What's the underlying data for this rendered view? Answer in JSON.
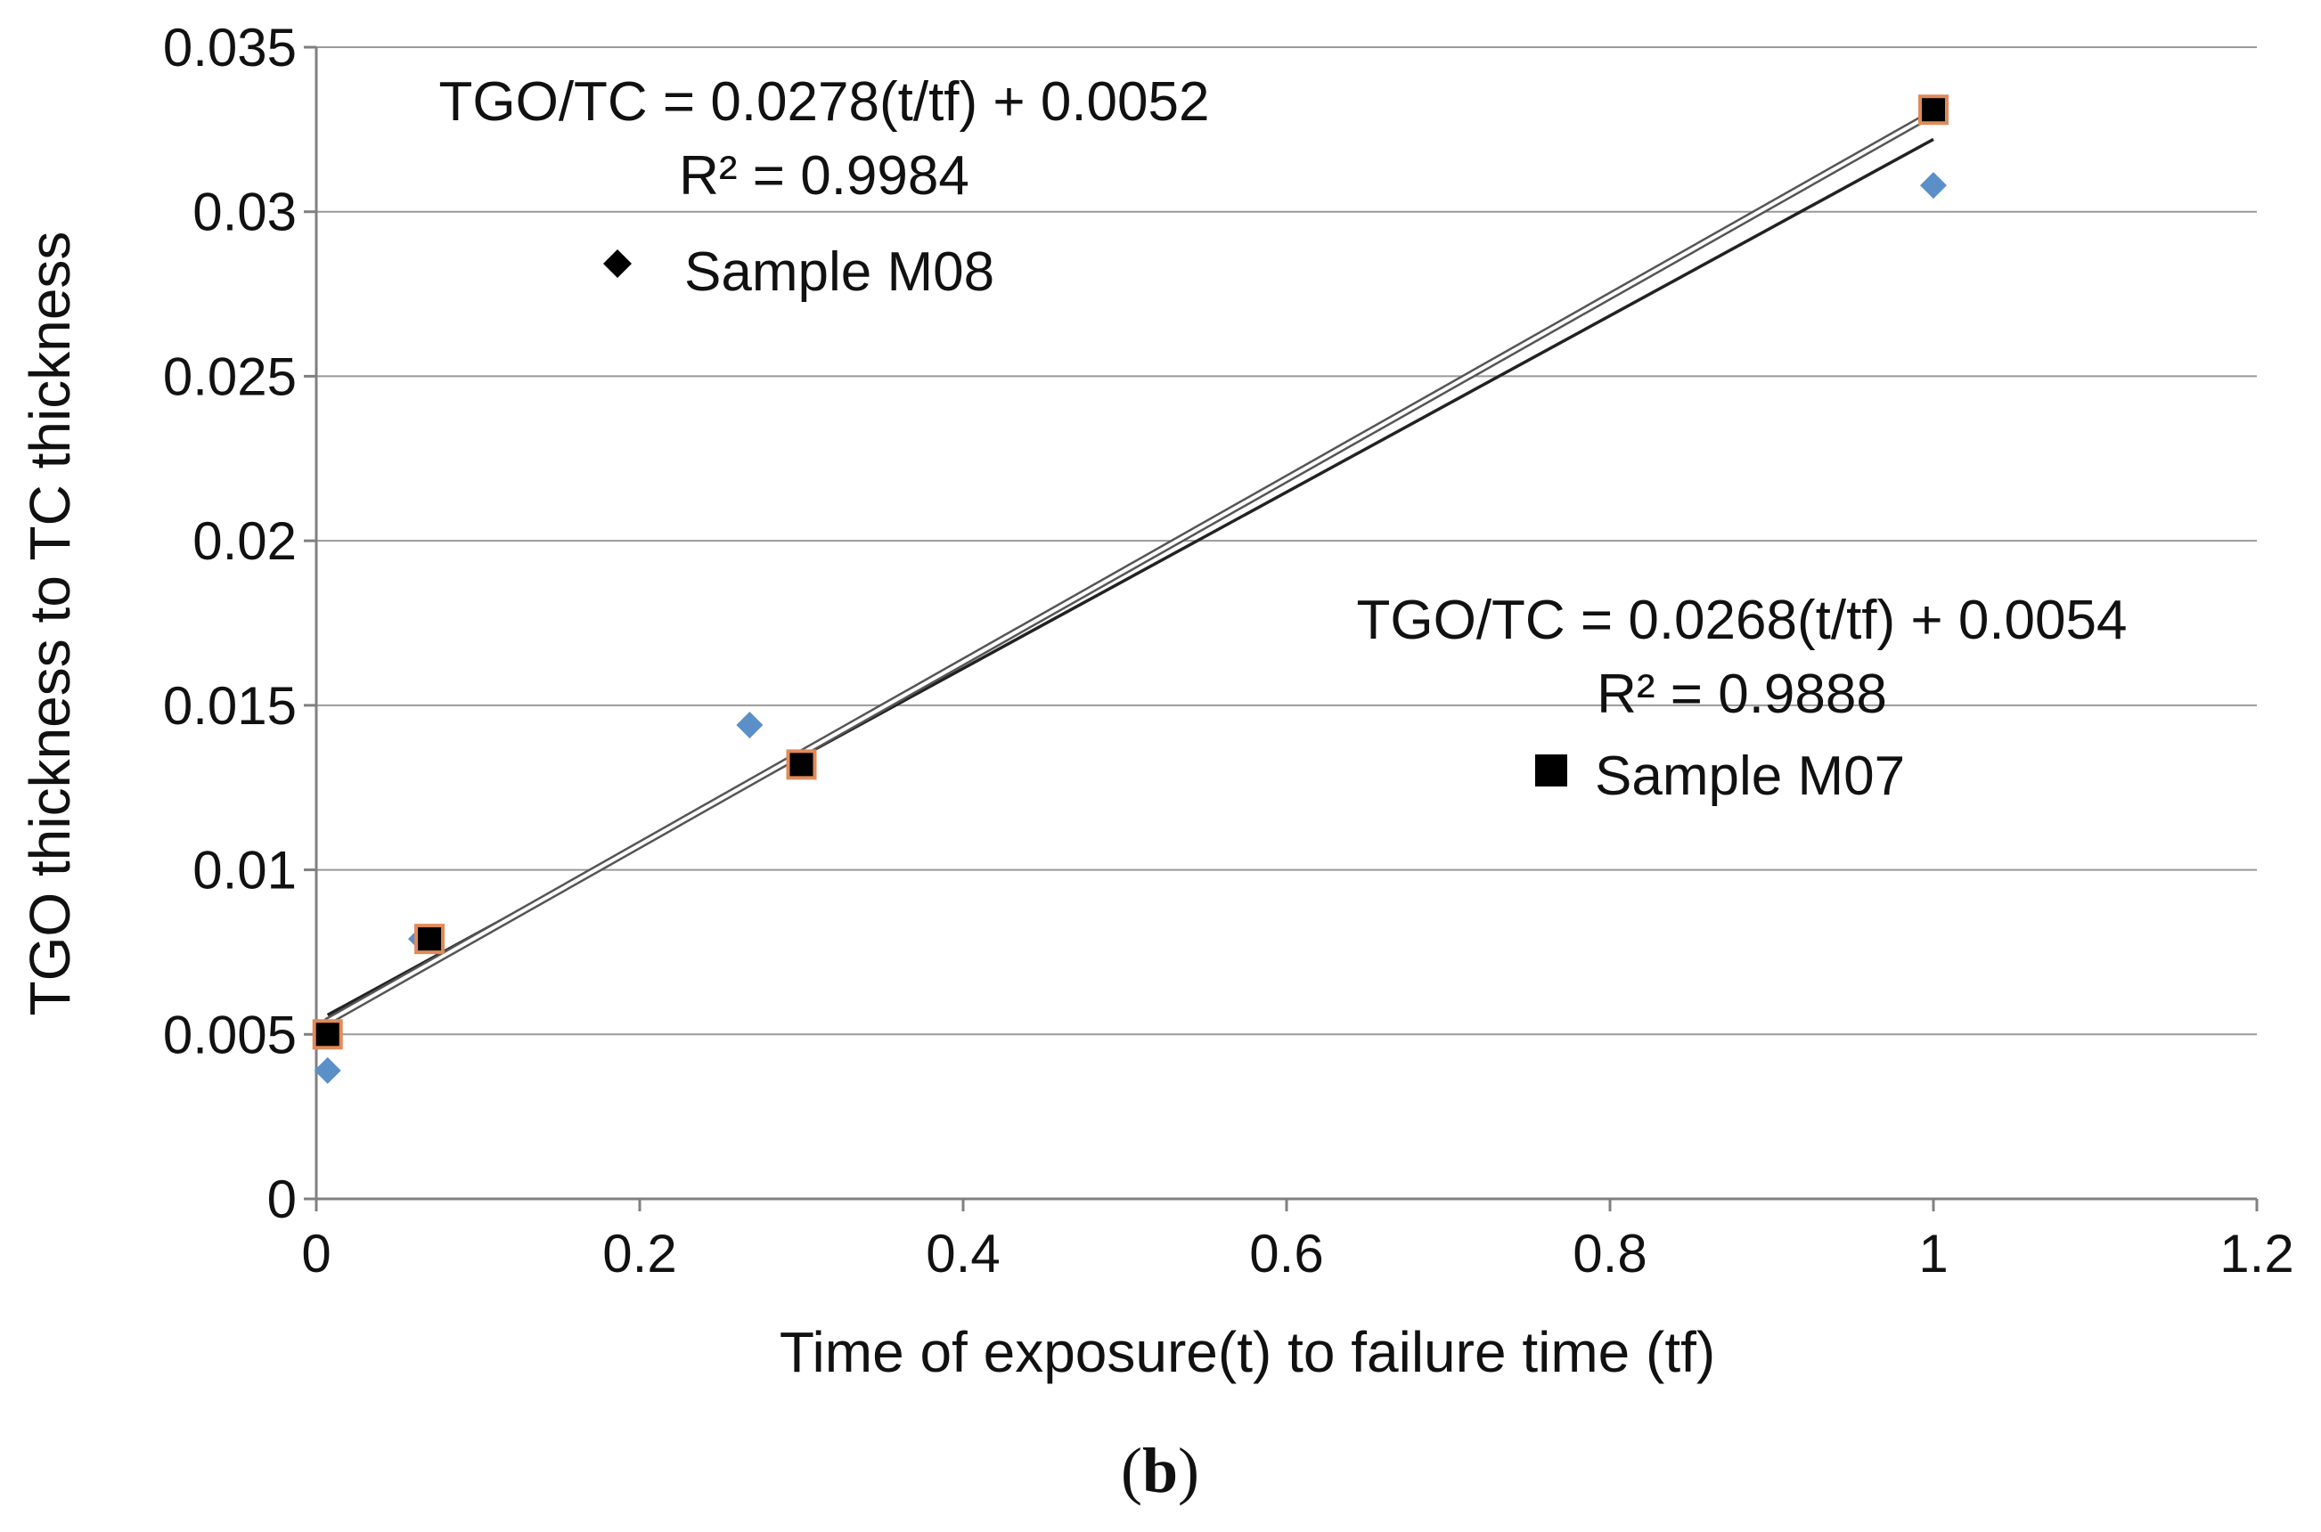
{
  "chart_data": {
    "type": "scatter",
    "title": "",
    "xlabel": "Time of exposure(t)  to failure  time  (tf)",
    "ylabel": "TGO thickness  to  TC thickness",
    "xlim": [
      0,
      1.2
    ],
    "ylim": [
      0,
      0.035
    ],
    "grid": "horizontal",
    "x_ticks": [
      {
        "value": 0,
        "label": "0"
      },
      {
        "value": 0.2,
        "label": "0.2"
      },
      {
        "value": 0.4,
        "label": "0.4"
      },
      {
        "value": 0.6,
        "label": "0.6"
      },
      {
        "value": 0.8,
        "label": "0.8"
      },
      {
        "value": 1,
        "label": "1"
      },
      {
        "value": 1.2,
        "label": "1.2"
      }
    ],
    "y_ticks": [
      {
        "value": 0,
        "label": "0"
      },
      {
        "value": 0.005,
        "label": "0.005"
      },
      {
        "value": 0.01,
        "label": "0.01"
      },
      {
        "value": 0.015,
        "label": "0.015"
      },
      {
        "value": 0.02,
        "label": "0.02"
      },
      {
        "value": 0.025,
        "label": "0.025"
      },
      {
        "value": 0.03,
        "label": "0.03"
      },
      {
        "value": 0.035,
        "label": "0.035"
      }
    ],
    "series": [
      {
        "name": "Sample M08",
        "marker": "diamond",
        "color": "#5b8fc7",
        "x": [
          0.007,
          0.065,
          0.268,
          1.0
        ],
        "y": [
          0.0039,
          0.0079,
          0.0144,
          0.0308
        ],
        "trendline": {
          "slope": 0.0268,
          "intercept": 0.0054,
          "color": "#222222",
          "style": "solid"
        }
      },
      {
        "name": "Sample M07",
        "marker": "square",
        "color": "#000000",
        "edge_color": "#e08a5a",
        "x": [
          0.007,
          0.07,
          0.3,
          1.0
        ],
        "y": [
          0.005,
          0.0079,
          0.0132,
          0.0331
        ],
        "trendline": {
          "slope": 0.0278,
          "intercept": 0.0052,
          "color": "#555555",
          "style": "double"
        }
      }
    ],
    "annotations": [
      {
        "id": "eq-upper",
        "text": "TGO/TC = 0.0278(t/tf)  + 0.0052"
      },
      {
        "id": "r2-upper",
        "text": "R² = 0.9984"
      },
      {
        "id": "legend-m08",
        "text": "Sample M08"
      },
      {
        "id": "eq-lower",
        "text": "TGO/TC = 0.0268(t/tf)  + 0.0054"
      },
      {
        "id": "r2-lower",
        "text": "R² = 0.9888"
      },
      {
        "id": "legend-m07",
        "text": "Sample M07"
      }
    ],
    "panel_label": "b"
  }
}
